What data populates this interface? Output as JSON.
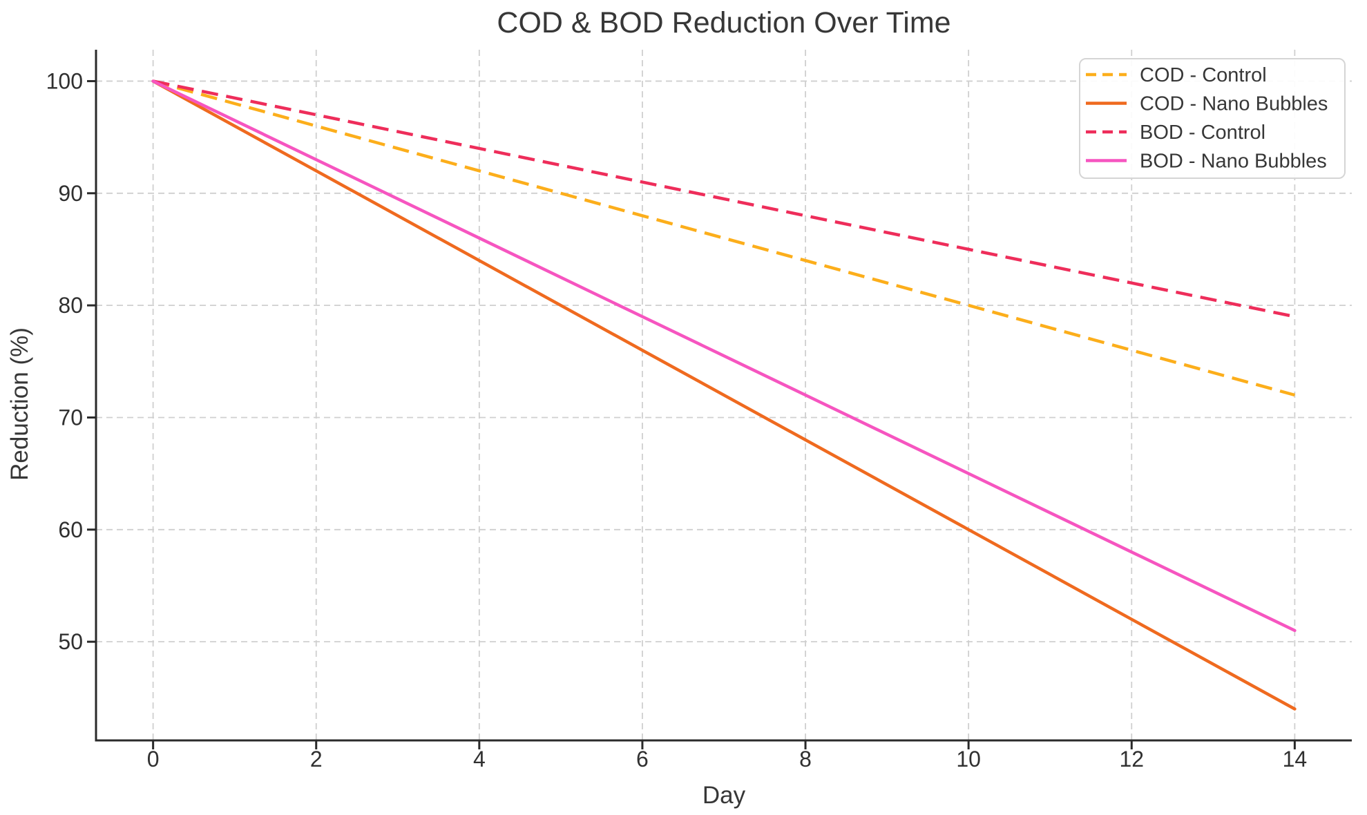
{
  "figure": {
    "background": "#FFFFFF"
  },
  "chart_data": {
    "type": "line",
    "title": "COD & BOD Reduction Over Time",
    "xlabel": "Day",
    "ylabel": "Reduction (%)",
    "x": [
      0,
      2,
      4,
      6,
      8,
      10,
      12,
      14
    ],
    "series": [
      {
        "name": "COD - Control",
        "style": "dashed",
        "color": "#FCAE1B",
        "values": [
          100,
          96,
          92,
          88,
          84,
          80,
          76,
          72
        ]
      },
      {
        "name": "COD - Nano Bubbles",
        "style": "solid",
        "color": "#EF6A1F",
        "values": [
          100,
          92,
          84,
          76,
          68,
          60,
          52,
          44
        ]
      },
      {
        "name": "BOD - Control",
        "style": "dashed",
        "color": "#EE2D5A",
        "values": [
          100,
          97,
          94,
          91,
          88,
          85,
          82,
          79
        ]
      },
      {
        "name": "BOD - Nano Bubbles",
        "style": "solid",
        "color": "#F655C0",
        "values": [
          100,
          93,
          86,
          79,
          72,
          65,
          58,
          51
        ]
      }
    ],
    "xtick_labels": [
      "0",
      "2",
      "4",
      "6",
      "8",
      "10",
      "12",
      "14"
    ],
    "xtick_values": [
      0,
      2,
      4,
      6,
      8,
      10,
      12,
      14
    ],
    "ytick_labels": [
      "50",
      "60",
      "70",
      "80",
      "90",
      "100"
    ],
    "ytick_values": [
      50,
      60,
      70,
      80,
      90,
      100
    ],
    "xlim": [
      -0.7,
      14.7
    ],
    "ylim": [
      41.2,
      102.8
    ],
    "grid": true,
    "legend_position": "upper right",
    "legend_items": [
      "COD - Control",
      "COD - Nano Bubbles",
      "BOD - Control",
      "BOD - Nano Bubbles"
    ]
  },
  "style_colors": {
    "grid": "#CFCFCF",
    "spine": "#2A2A2A",
    "tick": "#2A2A2A",
    "title_text": "#373737",
    "tick_text": "#303030",
    "legend_border": "#D5D5D5",
    "legend_background": "#FFFFFF"
  }
}
